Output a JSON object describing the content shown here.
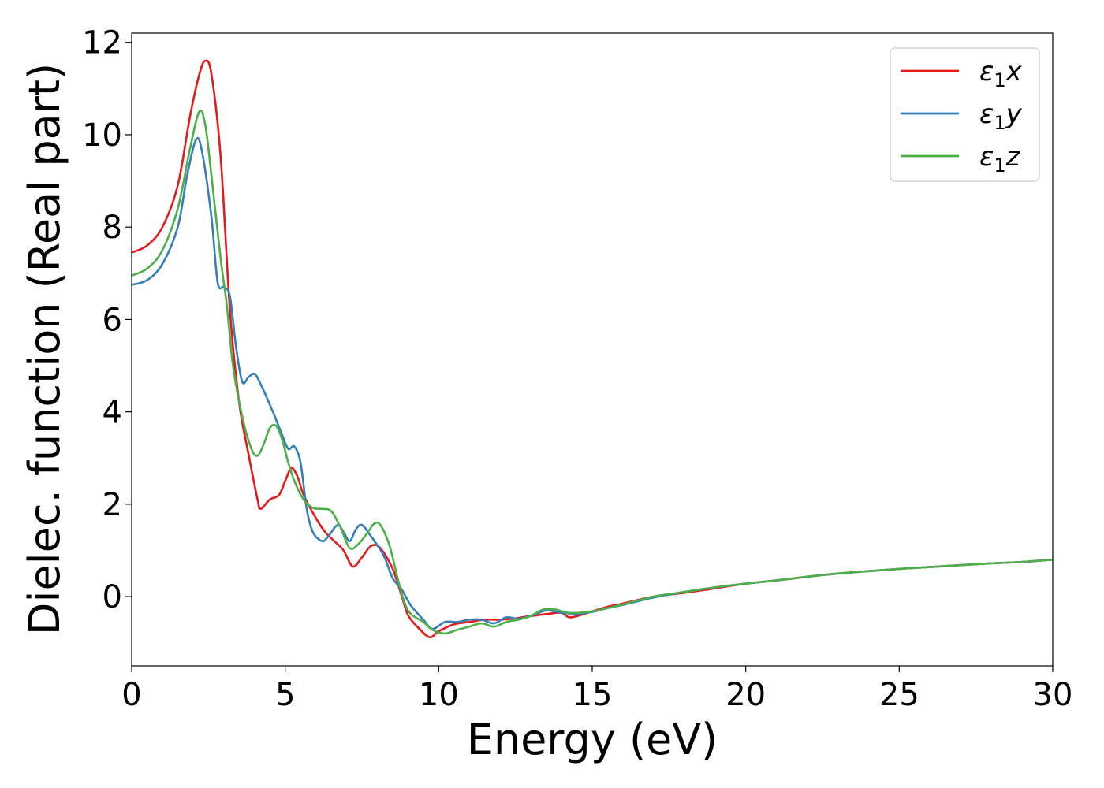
{
  "chart_data": {
    "type": "line",
    "xlabel": "Energy (eV)",
    "ylabel": "Dielec. function (Real part)",
    "xlim": [
      0,
      30
    ],
    "ylim": [
      -1.5,
      12.2
    ],
    "xticks": [
      0,
      5,
      10,
      15,
      20,
      25,
      30
    ],
    "yticks": [
      0,
      2,
      4,
      6,
      8,
      10,
      12
    ],
    "grid": false,
    "legend": "top-right",
    "series": [
      {
        "name": "ε1x",
        "label_base": "ε",
        "label_sub": "1",
        "label_tail": "x",
        "color": "#e41a1c",
        "points": [
          [
            0,
            7.45
          ],
          [
            0.5,
            7.6
          ],
          [
            1,
            8.0
          ],
          [
            1.5,
            8.9
          ],
          [
            1.9,
            10.4
          ],
          [
            2.2,
            11.3
          ],
          [
            2.4,
            11.6
          ],
          [
            2.6,
            11.3
          ],
          [
            2.9,
            9.5
          ],
          [
            3.2,
            6.2
          ],
          [
            3.5,
            4.2
          ],
          [
            3.8,
            3.1
          ],
          [
            4.1,
            2.1
          ],
          [
            4.2,
            1.9
          ],
          [
            4.5,
            2.1
          ],
          [
            4.8,
            2.2
          ],
          [
            5.0,
            2.5
          ],
          [
            5.2,
            2.78
          ],
          [
            5.4,
            2.6
          ],
          [
            5.6,
            2.2
          ],
          [
            6.0,
            1.7
          ],
          [
            6.3,
            1.4
          ],
          [
            6.6,
            1.2
          ],
          [
            6.9,
            1.0
          ],
          [
            7.2,
            0.65
          ],
          [
            7.5,
            0.85
          ],
          [
            7.8,
            1.1
          ],
          [
            8.1,
            1.05
          ],
          [
            8.5,
            0.6
          ],
          [
            8.8,
            0.0
          ],
          [
            9.0,
            -0.4
          ],
          [
            9.3,
            -0.65
          ],
          [
            9.7,
            -0.88
          ],
          [
            10.0,
            -0.75
          ],
          [
            10.5,
            -0.6
          ],
          [
            11,
            -0.55
          ],
          [
            11.5,
            -0.5
          ],
          [
            12,
            -0.5
          ],
          [
            12.5,
            -0.47
          ],
          [
            13,
            -0.42
          ],
          [
            13.5,
            -0.38
          ],
          [
            14,
            -0.35
          ],
          [
            14.3,
            -0.45
          ],
          [
            15,
            -0.32
          ],
          [
            15.5,
            -0.22
          ],
          [
            16,
            -0.15
          ],
          [
            17,
            0.0
          ],
          [
            18,
            0.08
          ],
          [
            19,
            0.18
          ],
          [
            20,
            0.28
          ],
          [
            21,
            0.35
          ],
          [
            22,
            0.43
          ],
          [
            23,
            0.5
          ],
          [
            24,
            0.55
          ],
          [
            25,
            0.6
          ],
          [
            26,
            0.64
          ],
          [
            27,
            0.68
          ],
          [
            28,
            0.72
          ],
          [
            29,
            0.75
          ],
          [
            30,
            0.8
          ]
        ]
      },
      {
        "name": "ε1y",
        "label_base": "ε",
        "label_sub": "1",
        "label_tail": "y",
        "color": "#377eb8",
        "points": [
          [
            0,
            6.75
          ],
          [
            0.5,
            6.85
          ],
          [
            1,
            7.2
          ],
          [
            1.5,
            8.0
          ],
          [
            1.8,
            9.1
          ],
          [
            2.1,
            9.9
          ],
          [
            2.3,
            9.6
          ],
          [
            2.6,
            8.2
          ],
          [
            2.8,
            6.8
          ],
          [
            3.0,
            6.7
          ],
          [
            3.2,
            6.5
          ],
          [
            3.4,
            5.4
          ],
          [
            3.6,
            4.65
          ],
          [
            3.8,
            4.75
          ],
          [
            4.0,
            4.82
          ],
          [
            4.2,
            4.6
          ],
          [
            4.6,
            4.0
          ],
          [
            4.9,
            3.5
          ],
          [
            5.1,
            3.2
          ],
          [
            5.3,
            3.25
          ],
          [
            5.5,
            2.9
          ],
          [
            5.7,
            1.9
          ],
          [
            5.9,
            1.4
          ],
          [
            6.2,
            1.2
          ],
          [
            6.4,
            1.3
          ],
          [
            6.7,
            1.55
          ],
          [
            6.9,
            1.4
          ],
          [
            7.1,
            1.2
          ],
          [
            7.3,
            1.45
          ],
          [
            7.5,
            1.55
          ],
          [
            7.8,
            1.3
          ],
          [
            8.2,
            0.9
          ],
          [
            8.5,
            0.4
          ],
          [
            8.8,
            0.15
          ],
          [
            9.1,
            -0.2
          ],
          [
            9.5,
            -0.5
          ],
          [
            9.8,
            -0.7
          ],
          [
            10.2,
            -0.55
          ],
          [
            10.6,
            -0.55
          ],
          [
            11,
            -0.5
          ],
          [
            11.4,
            -0.5
          ],
          [
            11.8,
            -0.58
          ],
          [
            12.2,
            -0.45
          ],
          [
            12.6,
            -0.48
          ],
          [
            13.0,
            -0.42
          ],
          [
            13.5,
            -0.3
          ],
          [
            14,
            -0.35
          ],
          [
            14.5,
            -0.37
          ],
          [
            15,
            -0.33
          ],
          [
            15.5,
            -0.25
          ],
          [
            16,
            -0.18
          ],
          [
            17,
            -0.02
          ],
          [
            18,
            0.1
          ],
          [
            19,
            0.2
          ],
          [
            20,
            0.28
          ],
          [
            21,
            0.35
          ],
          [
            22,
            0.43
          ],
          [
            23,
            0.5
          ],
          [
            24,
            0.55
          ],
          [
            25,
            0.6
          ],
          [
            26,
            0.64
          ],
          [
            27,
            0.68
          ],
          [
            28,
            0.72
          ],
          [
            29,
            0.75
          ],
          [
            30,
            0.8
          ]
        ]
      },
      {
        "name": "ε1z",
        "label_base": "ε",
        "label_sub": "1",
        "label_tail": "z",
        "color": "#4daf4a",
        "points": [
          [
            0,
            6.95
          ],
          [
            0.5,
            7.1
          ],
          [
            1,
            7.5
          ],
          [
            1.5,
            8.4
          ],
          [
            1.9,
            9.7
          ],
          [
            2.2,
            10.5
          ],
          [
            2.4,
            10.2
          ],
          [
            2.6,
            9.1
          ],
          [
            2.9,
            7.3
          ],
          [
            3.1,
            6.3
          ],
          [
            3.3,
            5.0
          ],
          [
            3.6,
            3.9
          ],
          [
            3.9,
            3.2
          ],
          [
            4.1,
            3.05
          ],
          [
            4.3,
            3.3
          ],
          [
            4.5,
            3.65
          ],
          [
            4.7,
            3.7
          ],
          [
            4.9,
            3.4
          ],
          [
            5.1,
            2.9
          ],
          [
            5.3,
            2.5
          ],
          [
            5.6,
            2.1
          ],
          [
            5.9,
            1.92
          ],
          [
            6.2,
            1.9
          ],
          [
            6.5,
            1.85
          ],
          [
            6.8,
            1.5
          ],
          [
            7.1,
            1.05
          ],
          [
            7.4,
            1.15
          ],
          [
            7.7,
            1.4
          ],
          [
            7.9,
            1.58
          ],
          [
            8.1,
            1.55
          ],
          [
            8.4,
            1.1
          ],
          [
            8.7,
            0.3
          ],
          [
            9.0,
            -0.3
          ],
          [
            9.5,
            -0.55
          ],
          [
            9.8,
            -0.72
          ],
          [
            10.2,
            -0.8
          ],
          [
            10.6,
            -0.72
          ],
          [
            11,
            -0.65
          ],
          [
            11.4,
            -0.58
          ],
          [
            11.8,
            -0.65
          ],
          [
            12.2,
            -0.55
          ],
          [
            12.6,
            -0.5
          ],
          [
            13,
            -0.42
          ],
          [
            13.4,
            -0.28
          ],
          [
            13.8,
            -0.28
          ],
          [
            14.2,
            -0.35
          ],
          [
            14.6,
            -0.35
          ],
          [
            15,
            -0.32
          ],
          [
            15.5,
            -0.25
          ],
          [
            16,
            -0.17
          ],
          [
            17,
            0.0
          ],
          [
            18,
            0.1
          ],
          [
            19,
            0.2
          ],
          [
            20,
            0.28
          ],
          [
            21,
            0.35
          ],
          [
            22,
            0.43
          ],
          [
            23,
            0.5
          ],
          [
            24,
            0.55
          ],
          [
            25,
            0.6
          ],
          [
            26,
            0.64
          ],
          [
            27,
            0.68
          ],
          [
            28,
            0.72
          ],
          [
            29,
            0.75
          ],
          [
            30,
            0.8
          ]
        ]
      }
    ]
  }
}
